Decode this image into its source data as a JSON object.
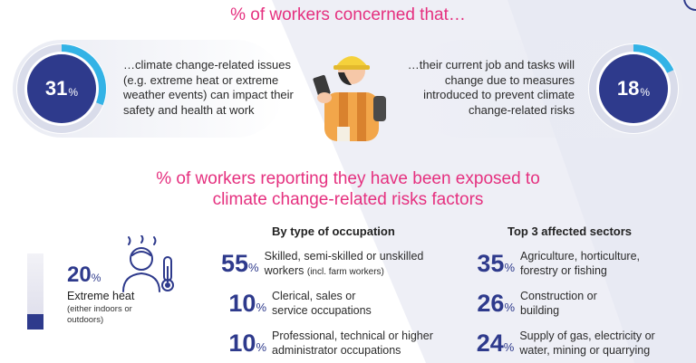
{
  "colors": {
    "accent_pink": "#e5307f",
    "navy": "#2e3a8c",
    "light_blue": "#33b3e6"
  },
  "top": {
    "heading": "% of workers concerned that…",
    "left": {
      "value": "31",
      "unit": "%",
      "fraction": 0.31,
      "text": "…climate change-related issues (e.g. extreme heat or extreme weather events) can impact their safety and health at work"
    },
    "right": {
      "value": "18",
      "unit": "%",
      "fraction": 0.18,
      "text": "…their current job and tasks will change due to measures introduced to prevent climate change-related risks"
    },
    "illustration": "worker-with-phone-icon"
  },
  "exposure": {
    "heading": "% of workers reporting they have been exposed to climate change-related risks factors",
    "heat": {
      "value": "20",
      "unit": "%",
      "fraction": 0.2,
      "label": "Extreme heat",
      "note": "(either indoors or outdoors)",
      "icon": "person-thermometer-icon"
    },
    "occupation": {
      "title": "By type of occupation",
      "items": [
        {
          "value": "55",
          "unit": "%",
          "text": "Skilled, semi-skilled or unskilled workers",
          "note": "(incl. farm workers)"
        },
        {
          "value": "10",
          "unit": "%",
          "text": "Clerical, sales or service occupations"
        },
        {
          "value": "10",
          "unit": "%",
          "text": "Professional, technical or higher administrator occupations"
        }
      ]
    },
    "sectors": {
      "title": "Top 3 affected sectors",
      "items": [
        {
          "value": "35",
          "unit": "%",
          "text": "Agriculture, horticulture, forestry or fishing"
        },
        {
          "value": "26",
          "unit": "%",
          "text": "Construction or building"
        },
        {
          "value": "24",
          "unit": "%",
          "text": "Supply of gas, electricity or water, mining or quarrying"
        }
      ]
    }
  }
}
